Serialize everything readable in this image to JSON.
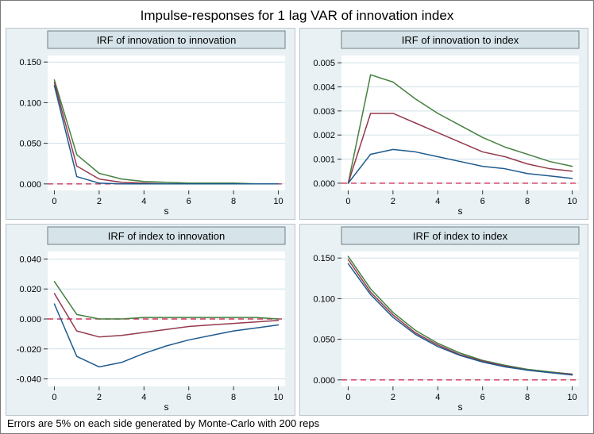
{
  "figure": {
    "title": "Impulse-responses for 1 lag VAR of innovation index",
    "note": "Errors are 5% on each side generated by Monte-Carlo with 200 reps"
  },
  "palette": {
    "lower_ci": "#1e5a8e",
    "point_estimate": "#943a4d",
    "upper_ci": "#44803f",
    "zero_line": "#cf3459",
    "gridline": "#cfe0e8",
    "plot_bg": "#ffffff",
    "title_box_fill": "#d6e4ea",
    "title_box_border": "#6f7f86",
    "tick_color": "#333333"
  },
  "chart_data": [
    {
      "type": "line",
      "title": "IRF of innovation to innovation",
      "xlabel": "s",
      "legend_position": "none",
      "grid": "horizontal",
      "x": [
        0,
        1,
        2,
        3,
        4,
        5,
        6,
        7,
        8,
        9,
        10
      ],
      "xlim": [
        -0.3,
        10.3
      ],
      "xticks": [
        0,
        2,
        4,
        6,
        8,
        10
      ],
      "ylim": [
        -0.008,
        0.158
      ],
      "yticks": [
        {
          "v": 0.0,
          "label": "0.000"
        },
        {
          "v": 0.05,
          "label": "0.050"
        },
        {
          "v": 0.1,
          "label": "0.100"
        },
        {
          "v": 0.15,
          "label": "0.150"
        }
      ],
      "zero_line": 0,
      "series": [
        {
          "name": "upper 90% CI",
          "color_key": "upper_ci",
          "values": [
            0.128,
            0.036,
            0.013,
            0.006,
            0.003,
            0.002,
            0.001,
            0.001,
            0.001,
            0.0,
            0.0
          ]
        },
        {
          "name": "IRF point estimate",
          "color_key": "point_estimate",
          "values": [
            0.125,
            0.022,
            0.006,
            0.002,
            0.001,
            0.0,
            0.0,
            0.0,
            0.0,
            0.0,
            0.0
          ]
        },
        {
          "name": "lower 90% CI",
          "color_key": "lower_ci",
          "values": [
            0.121,
            0.009,
            0.001,
            0.0,
            0.0,
            0.0,
            0.0,
            0.0,
            0.0,
            0.0,
            0.0
          ]
        }
      ]
    },
    {
      "type": "line",
      "title": "IRF of innovation to index",
      "xlabel": "s",
      "legend_position": "none",
      "grid": "horizontal",
      "x": [
        0,
        1,
        2,
        3,
        4,
        5,
        6,
        7,
        8,
        9,
        10
      ],
      "xlim": [
        -0.3,
        10.3
      ],
      "xticks": [
        0,
        2,
        4,
        6,
        8,
        10
      ],
      "ylim": [
        -0.0003,
        0.0053
      ],
      "yticks": [
        {
          "v": 0.0,
          "label": "0.000"
        },
        {
          "v": 0.001,
          "label": "0.001"
        },
        {
          "v": 0.002,
          "label": "0.002"
        },
        {
          "v": 0.003,
          "label": "0.003"
        },
        {
          "v": 0.004,
          "label": "0.004"
        },
        {
          "v": 0.005,
          "label": "0.005"
        }
      ],
      "zero_line": 0,
      "series": [
        {
          "name": "upper 90% CI",
          "color_key": "upper_ci",
          "values": [
            0.0,
            0.0045,
            0.0042,
            0.0035,
            0.0029,
            0.0024,
            0.0019,
            0.0015,
            0.0012,
            0.0009,
            0.0007
          ]
        },
        {
          "name": "IRF point estimate",
          "color_key": "point_estimate",
          "values": [
            0.0,
            0.0029,
            0.0029,
            0.0025,
            0.0021,
            0.0017,
            0.0013,
            0.0011,
            0.0008,
            0.0006,
            0.0005
          ]
        },
        {
          "name": "lower 90% CI",
          "color_key": "lower_ci",
          "values": [
            0.0,
            0.0012,
            0.0014,
            0.0013,
            0.0011,
            0.0009,
            0.0007,
            0.0006,
            0.0004,
            0.0003,
            0.0002
          ]
        }
      ]
    },
    {
      "type": "line",
      "title": "IRF of index to innovation",
      "xlabel": "s",
      "legend_position": "none",
      "grid": "horizontal",
      "x": [
        0,
        1,
        2,
        3,
        4,
        5,
        6,
        7,
        8,
        9,
        10
      ],
      "xlim": [
        -0.3,
        10.3
      ],
      "xticks": [
        0,
        2,
        4,
        6,
        8,
        10
      ],
      "ylim": [
        -0.045,
        0.045
      ],
      "yticks": [
        {
          "v": -0.04,
          "label": "-0.040"
        },
        {
          "v": -0.02,
          "label": "-0.020"
        },
        {
          "v": 0.0,
          "label": "0.000"
        },
        {
          "v": 0.02,
          "label": "0.020"
        },
        {
          "v": 0.04,
          "label": "0.040"
        }
      ],
      "zero_line": 0,
      "series": [
        {
          "name": "upper 90% CI",
          "color_key": "upper_ci",
          "values": [
            0.025,
            0.003,
            0.0,
            0.0,
            0.001,
            0.001,
            0.001,
            0.001,
            0.001,
            0.001,
            0.0
          ]
        },
        {
          "name": "IRF point estimate",
          "color_key": "point_estimate",
          "values": [
            0.017,
            -0.008,
            -0.012,
            -0.011,
            -0.009,
            -0.007,
            -0.005,
            -0.004,
            -0.003,
            -0.002,
            -0.001
          ]
        },
        {
          "name": "lower 90% CI",
          "color_key": "lower_ci",
          "values": [
            0.01,
            -0.025,
            -0.032,
            -0.029,
            -0.023,
            -0.018,
            -0.014,
            -0.011,
            -0.008,
            -0.006,
            -0.004
          ]
        }
      ]
    },
    {
      "type": "line",
      "title": "IRF of index to index",
      "xlabel": "s",
      "legend_position": "none",
      "grid": "horizontal",
      "x": [
        0,
        1,
        2,
        3,
        4,
        5,
        6,
        7,
        8,
        9,
        10
      ],
      "xlim": [
        -0.3,
        10.3
      ],
      "xticks": [
        0,
        2,
        4,
        6,
        8,
        10
      ],
      "ylim": [
        -0.008,
        0.158
      ],
      "yticks": [
        {
          "v": 0.0,
          "label": "0.000"
        },
        {
          "v": 0.05,
          "label": "0.050"
        },
        {
          "v": 0.1,
          "label": "0.100"
        },
        {
          "v": 0.15,
          "label": "0.150"
        }
      ],
      "zero_line": 0,
      "series": [
        {
          "name": "upper 90% CI",
          "color_key": "upper_ci",
          "values": [
            0.152,
            0.112,
            0.083,
            0.061,
            0.045,
            0.033,
            0.024,
            0.018,
            0.013,
            0.01,
            0.007
          ]
        },
        {
          "name": "IRF point estimate",
          "color_key": "point_estimate",
          "values": [
            0.148,
            0.108,
            0.08,
            0.058,
            0.043,
            0.031,
            0.023,
            0.017,
            0.012,
            0.009,
            0.007
          ]
        },
        {
          "name": "lower 90% CI",
          "color_key": "lower_ci",
          "values": [
            0.143,
            0.105,
            0.077,
            0.056,
            0.041,
            0.03,
            0.022,
            0.016,
            0.012,
            0.009,
            0.006
          ]
        }
      ]
    }
  ]
}
